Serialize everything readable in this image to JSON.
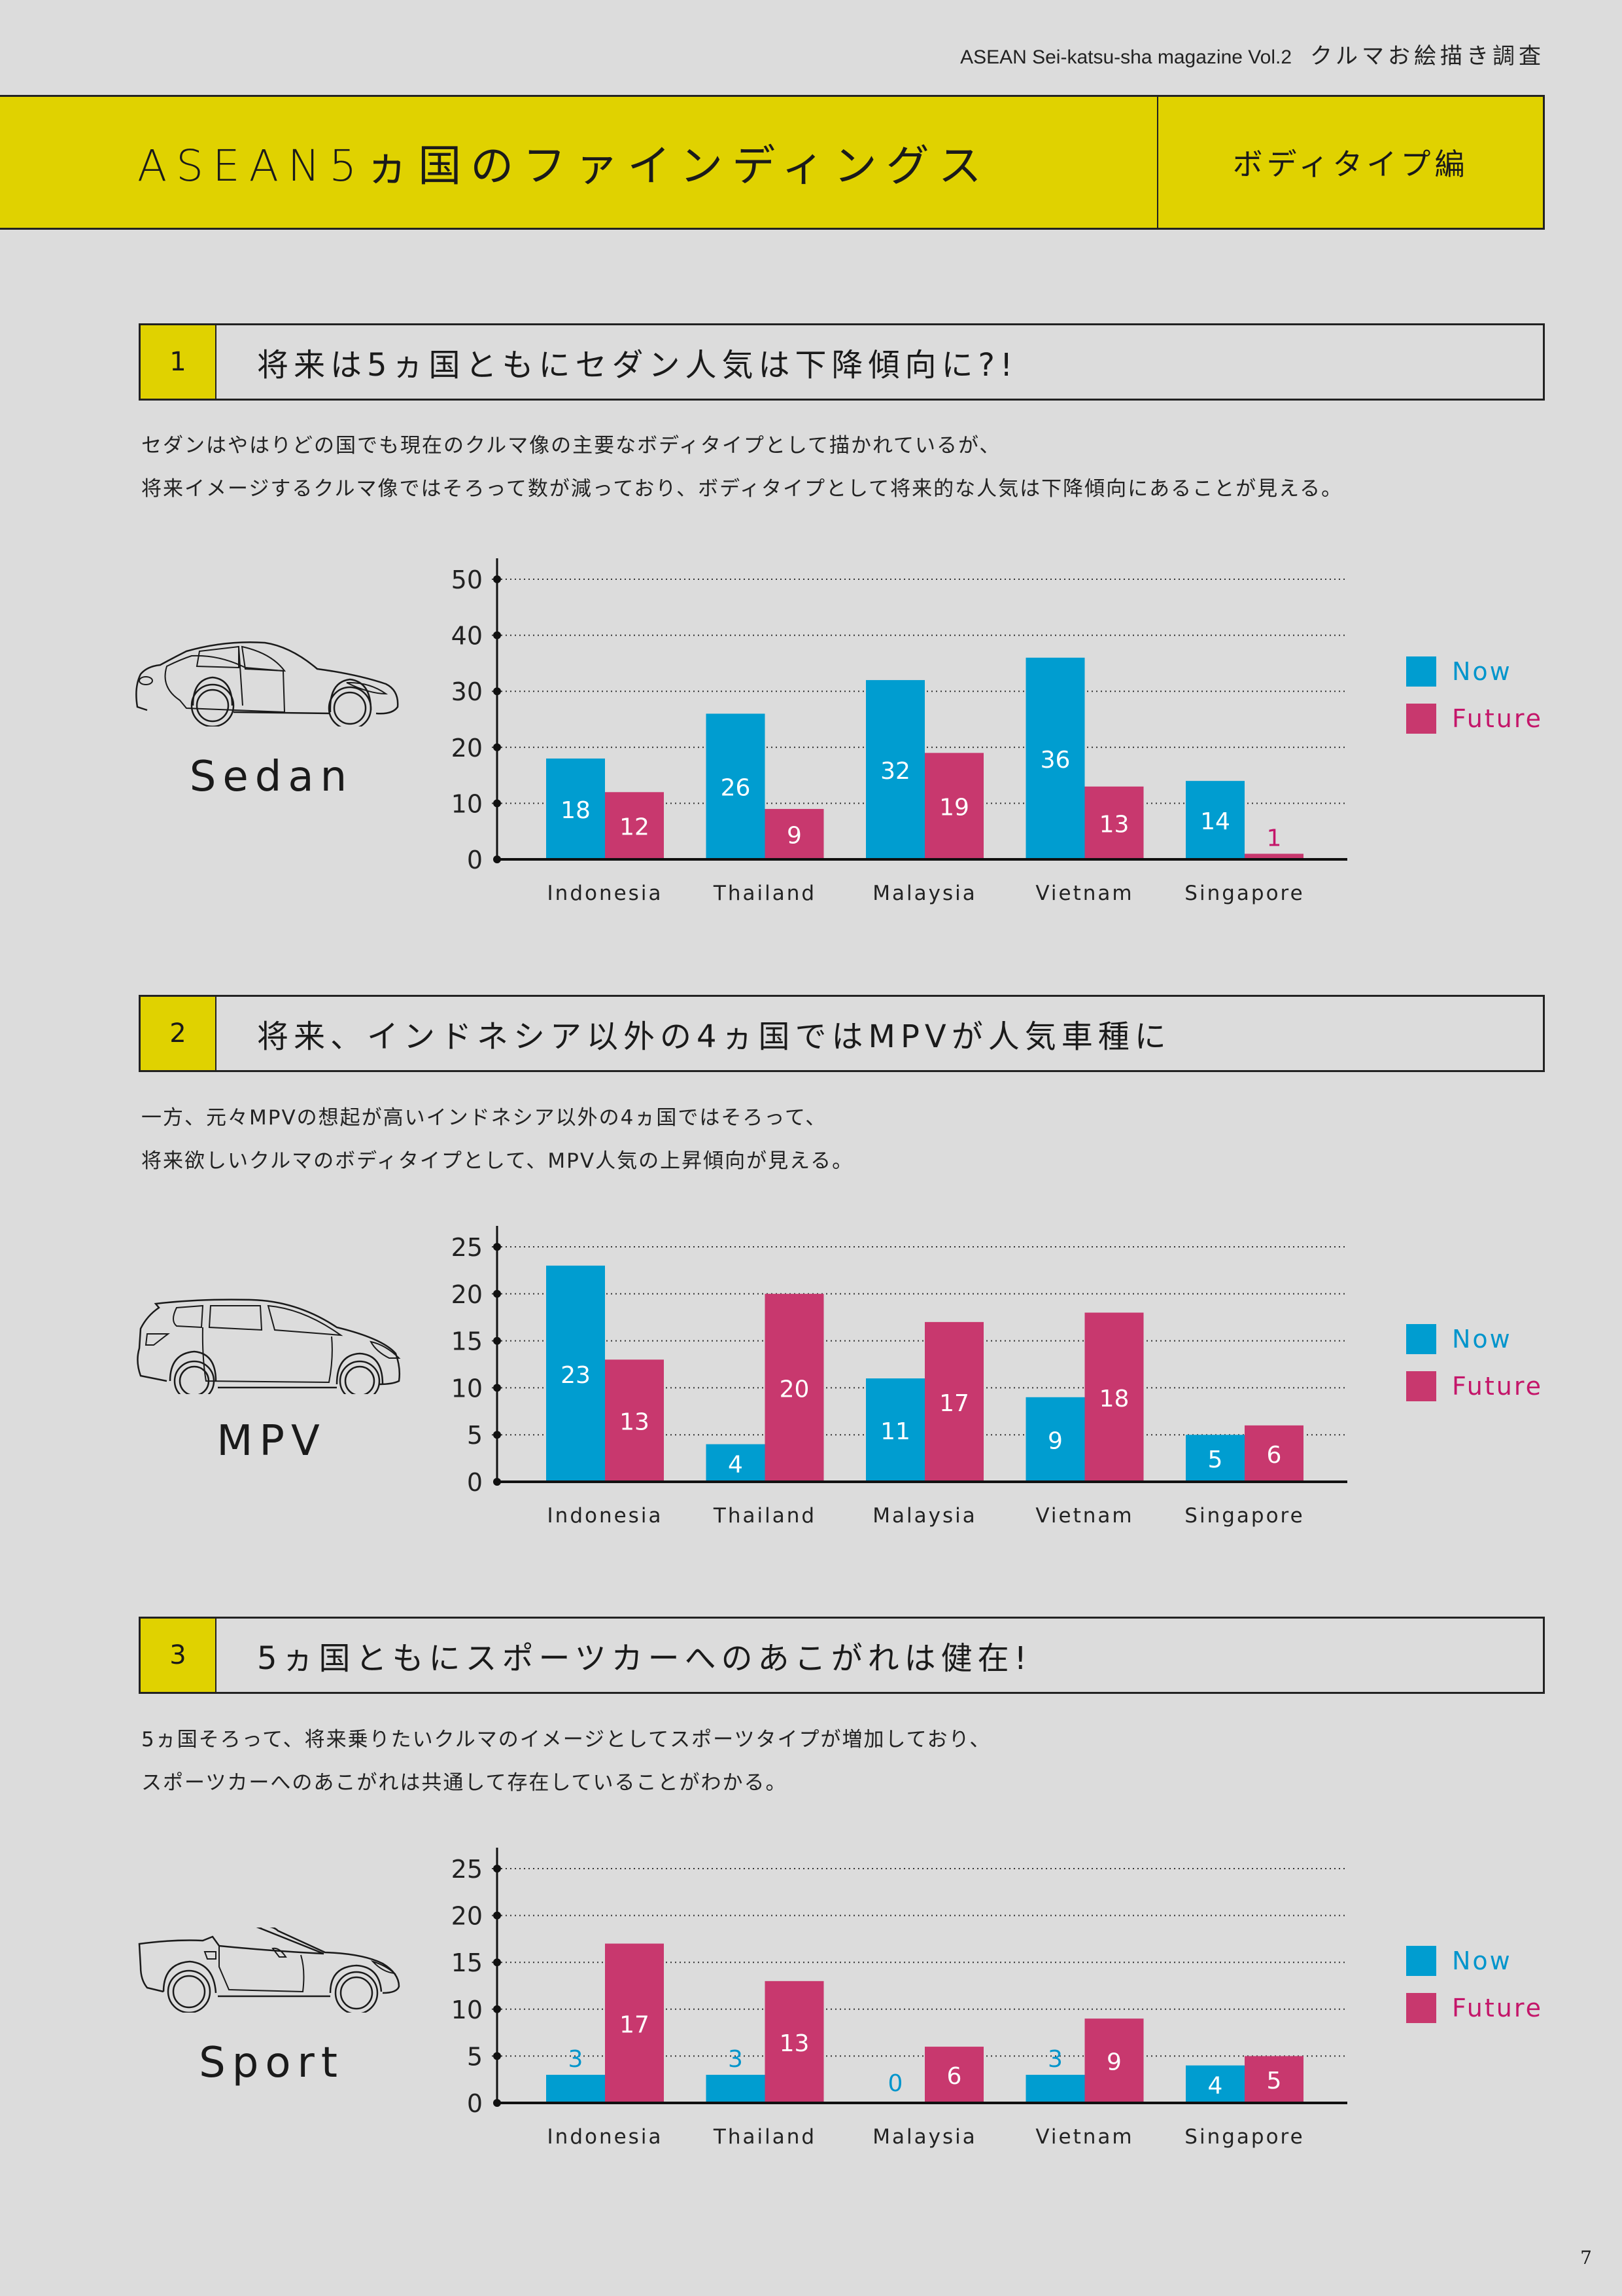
{
  "header": {
    "magazine": "ASEAN Sei-katsu-sha magazine Vol.2",
    "survey": "クルマお絵描き調査"
  },
  "title": {
    "main": "ASEAN5ヵ国のファインディングス",
    "sub": "ボディタイプ編"
  },
  "colors": {
    "now": "#009dd0",
    "future": "#c8386e",
    "accent": "#e0d200",
    "now_text": "#0095cc",
    "future_text": "#c4166a"
  },
  "sections": [
    {
      "number": "1",
      "heading": "将来は5ヵ国ともにセダン人気は下降傾向に?!",
      "body": [
        "セダンはやはりどの国でも現在のクルマ像の主要なボディタイプとして描かれているが、",
        "将来イメージするクルマ像ではそろって数が減っており、ボディタイプとして将来的な人気は下降傾向にあることが見える。"
      ],
      "car_type": "Sedan",
      "icon": "sedan-car-icon"
    },
    {
      "number": "2",
      "heading": "将来、インドネシア以外の4ヵ国ではMPVが人気車種に",
      "body": [
        "一方、元々MPVの想起が高いインドネシア以外の4ヵ国ではそろって、",
        "将来欲しいクルマのボディタイプとして、MPV人気の上昇傾向が見える。"
      ],
      "car_type": "MPV",
      "icon": "mpv-car-icon"
    },
    {
      "number": "3",
      "heading": "5ヵ国ともにスポーツカーへのあこがれは健在!",
      "body": [
        "5ヵ国そろって、将来乗りたいクルマのイメージとしてスポーツタイプが増加しており、",
        "スポーツカーへのあこがれは共通して存在していることがわかる。"
      ],
      "car_type": "Sport",
      "icon": "sport-car-icon"
    }
  ],
  "chart_data": [
    {
      "type": "bar",
      "title": "Sedan",
      "categories": [
        "Indonesia",
        "Thailand",
        "Malaysia",
        "Vietnam",
        "Singapore"
      ],
      "series": [
        {
          "name": "Now",
          "values": [
            18,
            26,
            32,
            36,
            14
          ]
        },
        {
          "name": "Future",
          "values": [
            12,
            9,
            19,
            13,
            1
          ]
        }
      ],
      "yticks": [
        0,
        10,
        20,
        30,
        40,
        50
      ],
      "ylim": [
        0,
        50
      ],
      "xlabel": "",
      "ylabel": "",
      "grid": true,
      "legend": "right"
    },
    {
      "type": "bar",
      "title": "MPV",
      "categories": [
        "Indonesia",
        "Thailand",
        "Malaysia",
        "Vietnam",
        "Singapore"
      ],
      "series": [
        {
          "name": "Now",
          "values": [
            23,
            4,
            11,
            9,
            5
          ]
        },
        {
          "name": "Future",
          "values": [
            13,
            20,
            17,
            18,
            6
          ]
        }
      ],
      "yticks": [
        0,
        5,
        10,
        15,
        20,
        25
      ],
      "ylim": [
        0,
        25
      ],
      "xlabel": "",
      "ylabel": "",
      "grid": true,
      "legend": "right"
    },
    {
      "type": "bar",
      "title": "Sport",
      "categories": [
        "Indonesia",
        "Thailand",
        "Malaysia",
        "Vietnam",
        "Singapore"
      ],
      "series": [
        {
          "name": "Now",
          "values": [
            3,
            3,
            0,
            3,
            4
          ]
        },
        {
          "name": "Future",
          "values": [
            17,
            13,
            6,
            9,
            5
          ]
        }
      ],
      "yticks": [
        0,
        5,
        10,
        15,
        20,
        25
      ],
      "ylim": [
        0,
        25
      ],
      "xlabel": "",
      "ylabel": "",
      "grid": true,
      "legend": "right"
    }
  ],
  "page_number": "7"
}
